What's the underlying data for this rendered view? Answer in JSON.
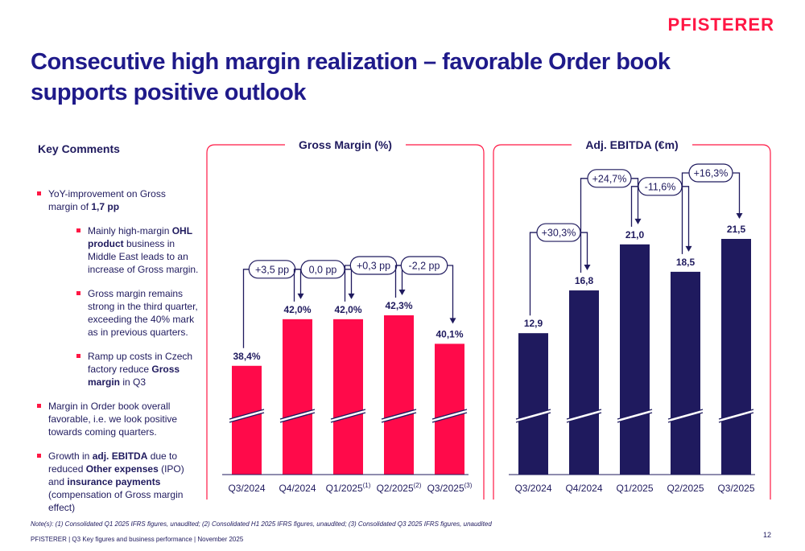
{
  "brand": {
    "logo_text": "PFISTERER",
    "accent": "#ff1744",
    "navy": "#1f1a5e"
  },
  "page": {
    "title": "Consecutive high margin realization – favorable Order book supports positive outlook"
  },
  "key_comments": {
    "title": "Key Comments",
    "bullets": [
      {
        "level": 1,
        "parts": [
          {
            "t": "YoY-improvement on Gross margin of "
          },
          {
            "t": "1,7 pp",
            "b": true
          }
        ]
      },
      {
        "level": 2,
        "parts": [
          {
            "t": "Mainly high-margin "
          },
          {
            "t": "OHL product",
            "b": true
          },
          {
            "t": " business in Middle East leads to an increase of Gross margin."
          }
        ]
      },
      {
        "level": 2,
        "parts": [
          {
            "t": "Gross margin remains strong in the third quarter, exceeding the 40% mark as in previous quarters."
          }
        ]
      },
      {
        "level": 2,
        "parts": [
          {
            "t": "Ramp up costs in Czech factory reduce "
          },
          {
            "t": "Gross margin",
            "b": true
          },
          {
            "t": " in Q3"
          }
        ]
      },
      {
        "level": 1,
        "parts": [
          {
            "t": "Margin in Order book overall favorable, i.e. we look positive towards coming quarters."
          }
        ]
      },
      {
        "level": 1,
        "parts": [
          {
            "t": "Growth in "
          },
          {
            "t": "adj. EBITDA",
            "b": true
          },
          {
            "t": " due to reduced "
          },
          {
            "t": "Other expenses",
            "b": true
          },
          {
            "t": " (IPO) and "
          },
          {
            "t": "insurance payments",
            "b": true
          },
          {
            "t": " (compensation of Gross margin effect)"
          }
        ]
      }
    ]
  },
  "chart_data": [
    {
      "type": "bar",
      "title": "Gross Margin (%)",
      "color": "#ff0a4a",
      "categories": [
        "Q3/2024",
        "Q4/2024",
        "Q1/2025",
        "Q2/2025",
        "Q3/2025"
      ],
      "superscripts": [
        "",
        "",
        "(1)",
        "(2)",
        "(3)"
      ],
      "values": [
        38.4,
        42.0,
        42.0,
        42.3,
        40.1
      ],
      "value_labels": [
        "38,4%",
        "42,0%",
        "42,0%",
        "42,3%",
        "40,1%"
      ],
      "changes": [
        "+3,5 pp",
        "0,0 pp",
        "+0,3 pp",
        "-2,2 pp"
      ],
      "axis_break": true,
      "ylim": [
        30,
        45
      ]
    },
    {
      "type": "bar",
      "title": "Adj. EBITDA (€m)",
      "color": "#1f1a5e",
      "categories": [
        "Q3/2024",
        "Q4/2024",
        "Q1/2025",
        "Q2/2025",
        "Q3/2025"
      ],
      "superscripts": [
        "",
        "",
        "",
        "",
        ""
      ],
      "values": [
        12.9,
        16.8,
        21.0,
        18.5,
        21.5
      ],
      "value_labels": [
        "12,9",
        "16,8",
        "21,0",
        "18,5",
        "21,5"
      ],
      "changes": [
        "+30,3%",
        "+24,7%",
        "-11,6%",
        "+16,3%"
      ],
      "axis_break": true,
      "ylim": [
        0,
        23
      ]
    }
  ],
  "notes": "Note(s): (1) Consolidated Q1 2025 IFRS figures, unaudited; (2) Consolidated H1 2025 IFRS figures, unaudited; (3) Consolidated Q3 2025 IFRS figures, unaudited",
  "footer": {
    "text": "PFISTERER | Q3 Key figures and business performance | November 2025",
    "page_number": "12"
  }
}
